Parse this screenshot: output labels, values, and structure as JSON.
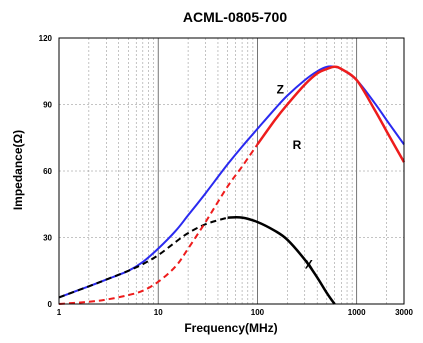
{
  "chart_data": {
    "type": "line",
    "title": "ACML-0805-700",
    "xlabel": "Frequency(MHz)",
    "ylabel": "Impedance(Ω)",
    "x_scale": "log",
    "xlim": [
      1,
      3000
    ],
    "ylim": [
      0,
      120
    ],
    "x_ticks": [
      {
        "value": 1,
        "label": "1"
      },
      {
        "value": 10,
        "label": "10"
      },
      {
        "value": 100,
        "label": "100"
      },
      {
        "value": 1000,
        "label": "1000"
      },
      {
        "value": 3000,
        "label": "3000"
      }
    ],
    "y_ticks": [
      {
        "value": 0,
        "label": "0"
      },
      {
        "value": 30,
        "label": "30"
      },
      {
        "value": 60,
        "label": "60"
      },
      {
        "value": 90,
        "label": "90"
      },
      {
        "value": 120,
        "label": "120"
      }
    ],
    "grid": true,
    "series": [
      {
        "name": "Z",
        "color": "#2a2af0",
        "points": [
          [
            1,
            3
          ],
          [
            2,
            8
          ],
          [
            3,
            11
          ],
          [
            5,
            15
          ],
          [
            7,
            19
          ],
          [
            10,
            25
          ],
          [
            15,
            33
          ],
          [
            20,
            40
          ],
          [
            30,
            50
          ],
          [
            50,
            63
          ],
          [
            70,
            71
          ],
          [
            100,
            79
          ],
          [
            150,
            88
          ],
          [
            200,
            94
          ],
          [
            300,
            101
          ],
          [
            400,
            105
          ],
          [
            500,
            107
          ],
          [
            600,
            107
          ],
          [
            700,
            106
          ],
          [
            1000,
            101
          ],
          [
            1500,
            91
          ],
          [
            2000,
            83
          ],
          [
            3000,
            72
          ]
        ]
      },
      {
        "name": "R",
        "color": "#ee1c1c",
        "points": [
          [
            1,
            0
          ],
          [
            2,
            1
          ],
          [
            3,
            2
          ],
          [
            5,
            4
          ],
          [
            7,
            6
          ],
          [
            10,
            10
          ],
          [
            15,
            17
          ],
          [
            20,
            25
          ],
          [
            30,
            37
          ],
          [
            50,
            53
          ],
          [
            70,
            62
          ],
          [
            100,
            72
          ],
          [
            150,
            83
          ],
          [
            200,
            90
          ],
          [
            300,
            99
          ],
          [
            400,
            104
          ],
          [
            500,
            106
          ],
          [
            600,
            107
          ],
          [
            700,
            106
          ],
          [
            1000,
            101
          ],
          [
            1500,
            88
          ],
          [
            2000,
            78
          ],
          [
            3000,
            64
          ]
        ]
      },
      {
        "name": "X",
        "color": "#000000",
        "points": [
          [
            1,
            3
          ],
          [
            2,
            8
          ],
          [
            3,
            11
          ],
          [
            5,
            15
          ],
          [
            7,
            18
          ],
          [
            10,
            22
          ],
          [
            15,
            28
          ],
          [
            20,
            32
          ],
          [
            30,
            36
          ],
          [
            50,
            39
          ],
          [
            70,
            39
          ],
          [
            100,
            37
          ],
          [
            150,
            33
          ],
          [
            200,
            29
          ],
          [
            300,
            20
          ],
          [
            400,
            12
          ],
          [
            500,
            5
          ],
          [
            600,
            0
          ]
        ]
      }
    ],
    "annotations": [
      {
        "text": "Z",
        "x": 170,
        "y": 95
      },
      {
        "text": "R",
        "x": 250,
        "y": 70
      },
      {
        "text": "X",
        "x": 330,
        "y": 16
      }
    ]
  }
}
